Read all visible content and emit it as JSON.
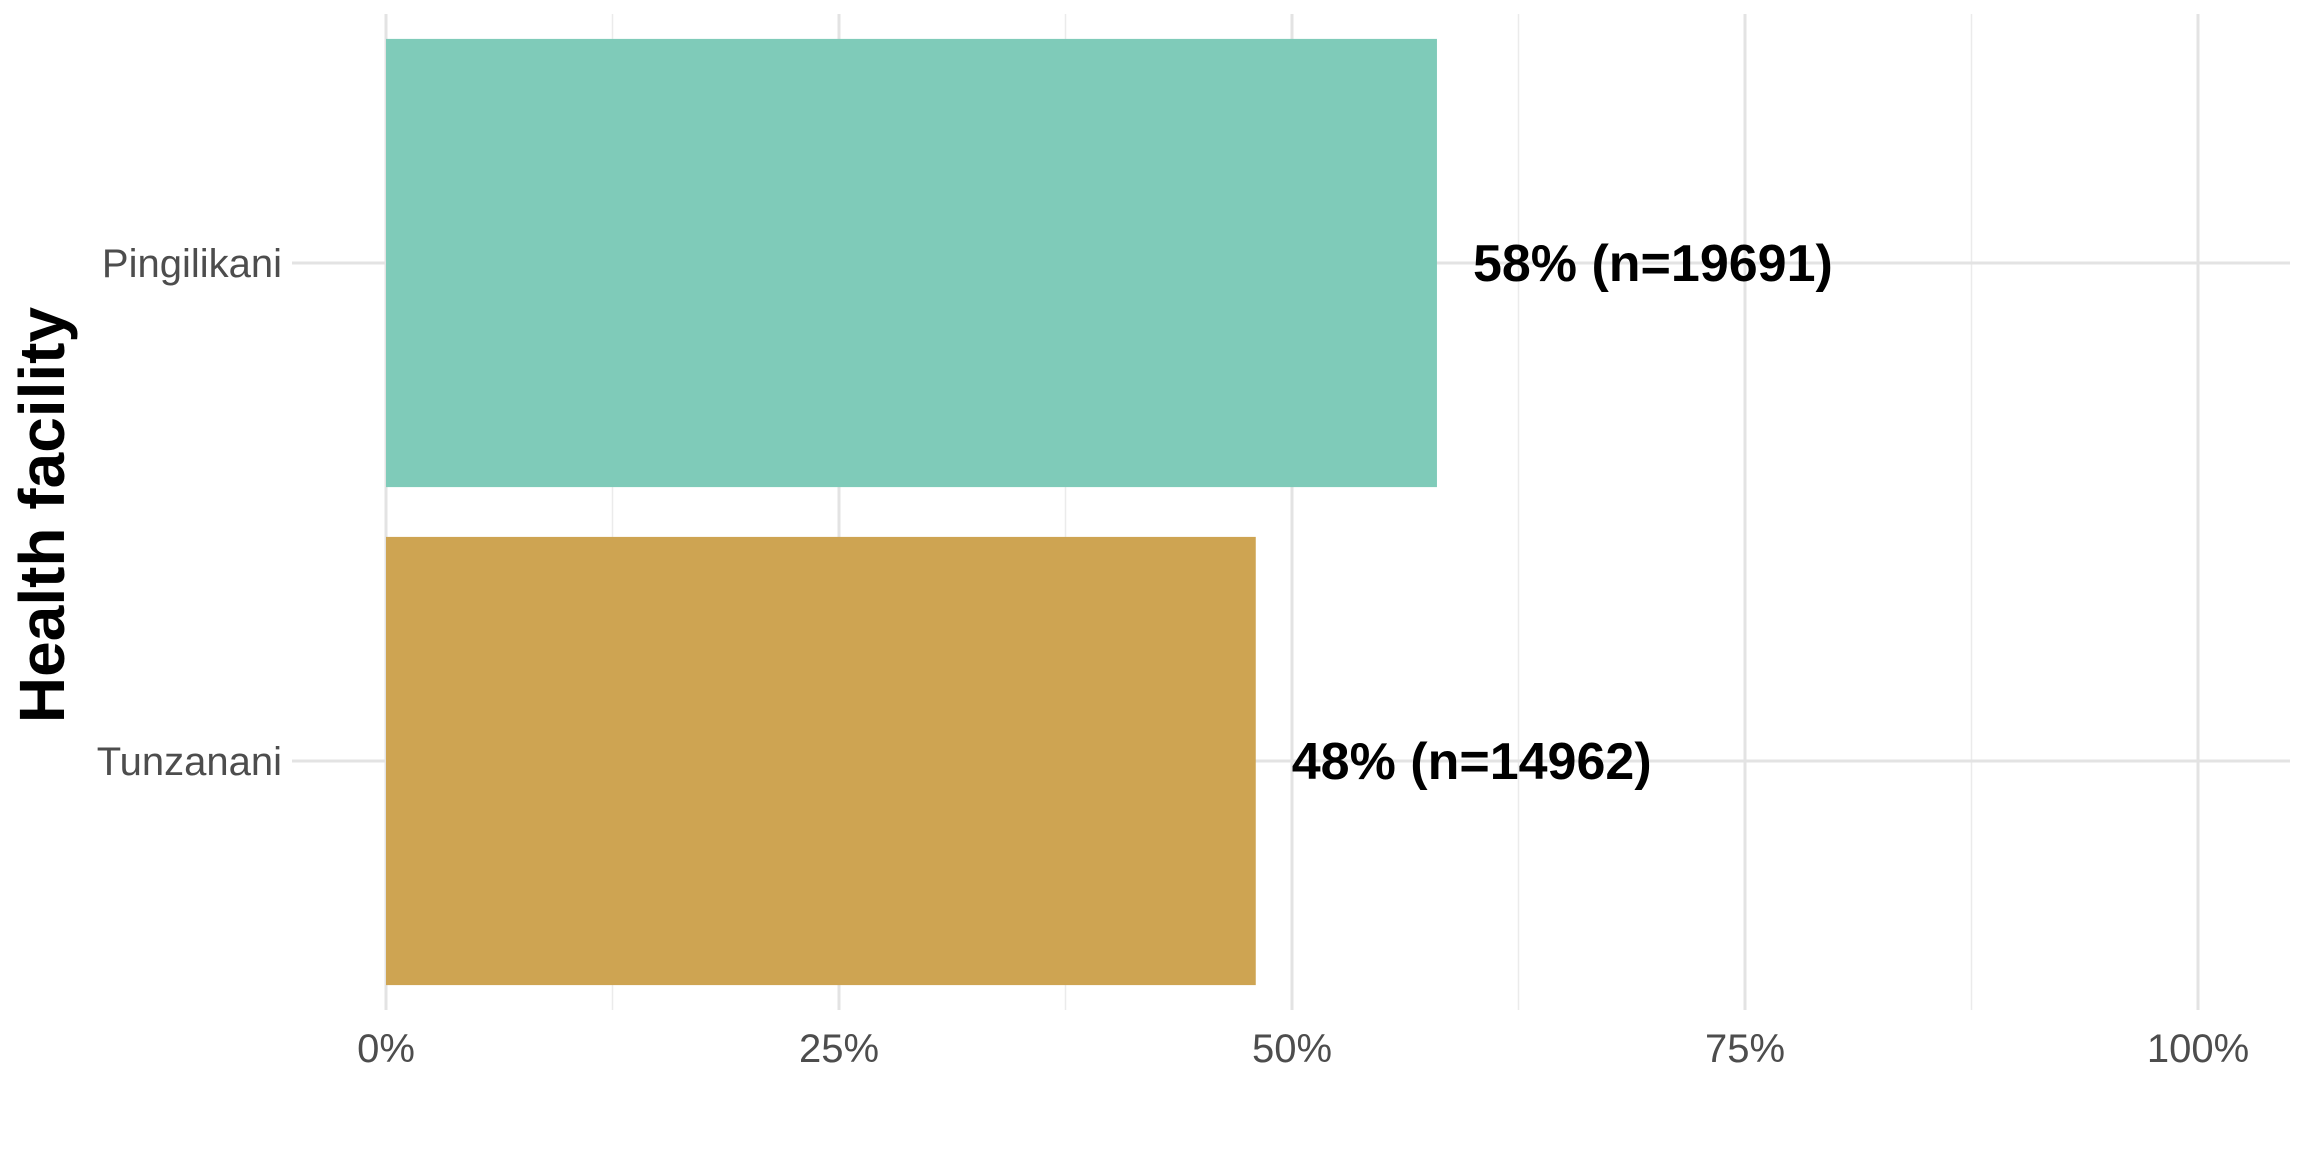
{
  "chart_data": {
    "type": "bar",
    "orientation": "horizontal",
    "ylabel": "Health facility",
    "xlabel": "",
    "xlim": [
      0,
      100
    ],
    "x_ticks": [
      0,
      25,
      50,
      75,
      100
    ],
    "x_tick_labels": [
      "0%",
      "25%",
      "50%",
      "75%",
      "100%"
    ],
    "categories": [
      "Pingilikani",
      "Tunzanani"
    ],
    "values": [
      58,
      48
    ],
    "data_labels": [
      "58% (n=19691)",
      "48% (n=14962)"
    ],
    "colors": [
      "#7fcbb9",
      "#cea452"
    ],
    "grid": true,
    "legend": "none"
  }
}
